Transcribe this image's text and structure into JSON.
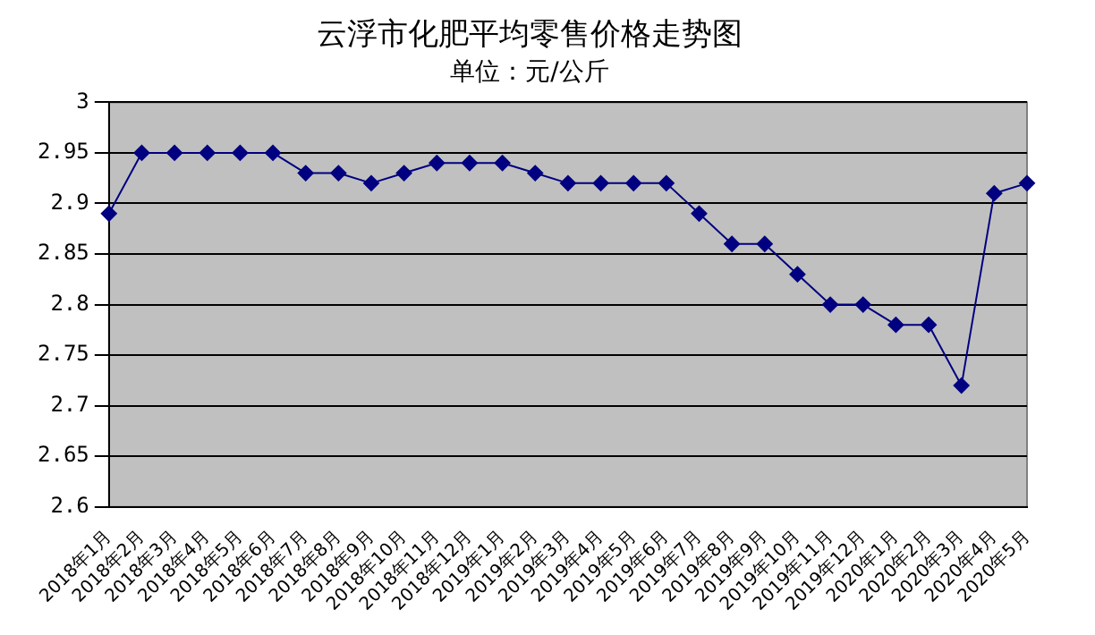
{
  "chart_data": {
    "type": "line",
    "title": "云浮市化肥平均零售价格走势图",
    "subtitle": "单位：元/公斤",
    "categories": [
      "2018年1月",
      "2018年2月",
      "2018年3月",
      "2018年4月",
      "2018年5月",
      "2018年6月",
      "2018年7月",
      "2018年8月",
      "2018年9月",
      "2018年10月",
      "2018年11月",
      "2018年12月",
      "2019年1月",
      "2019年2月",
      "2019年3月",
      "2019年4月",
      "2019年5月",
      "2019年6月",
      "2019年7月",
      "2019年8月",
      "2019年9月",
      "2019年10月",
      "2019年11月",
      "2019年12月",
      "2020年1月",
      "2020年2月",
      "2020年3月",
      "2020年4月",
      "2020年5月"
    ],
    "series": [
      {
        "color": "#000080",
        "values": [
          2.89,
          2.95,
          2.95,
          2.95,
          2.95,
          2.95,
          2.93,
          2.93,
          2.92,
          2.93,
          2.94,
          2.94,
          2.94,
          2.93,
          2.92,
          2.92,
          2.92,
          2.92,
          2.89,
          2.86,
          2.86,
          2.83,
          2.8,
          2.8,
          2.78,
          2.78,
          2.72,
          2.91,
          2.92
        ]
      }
    ],
    "ylim": [
      2.6,
      3
    ],
    "yticks": [
      2.6,
      2.65,
      2.7,
      2.75,
      2.8,
      2.85,
      2.9,
      2.95,
      3
    ],
    "grid": "y",
    "legend": false,
    "marker": "diamond",
    "line_style": "solid"
  }
}
